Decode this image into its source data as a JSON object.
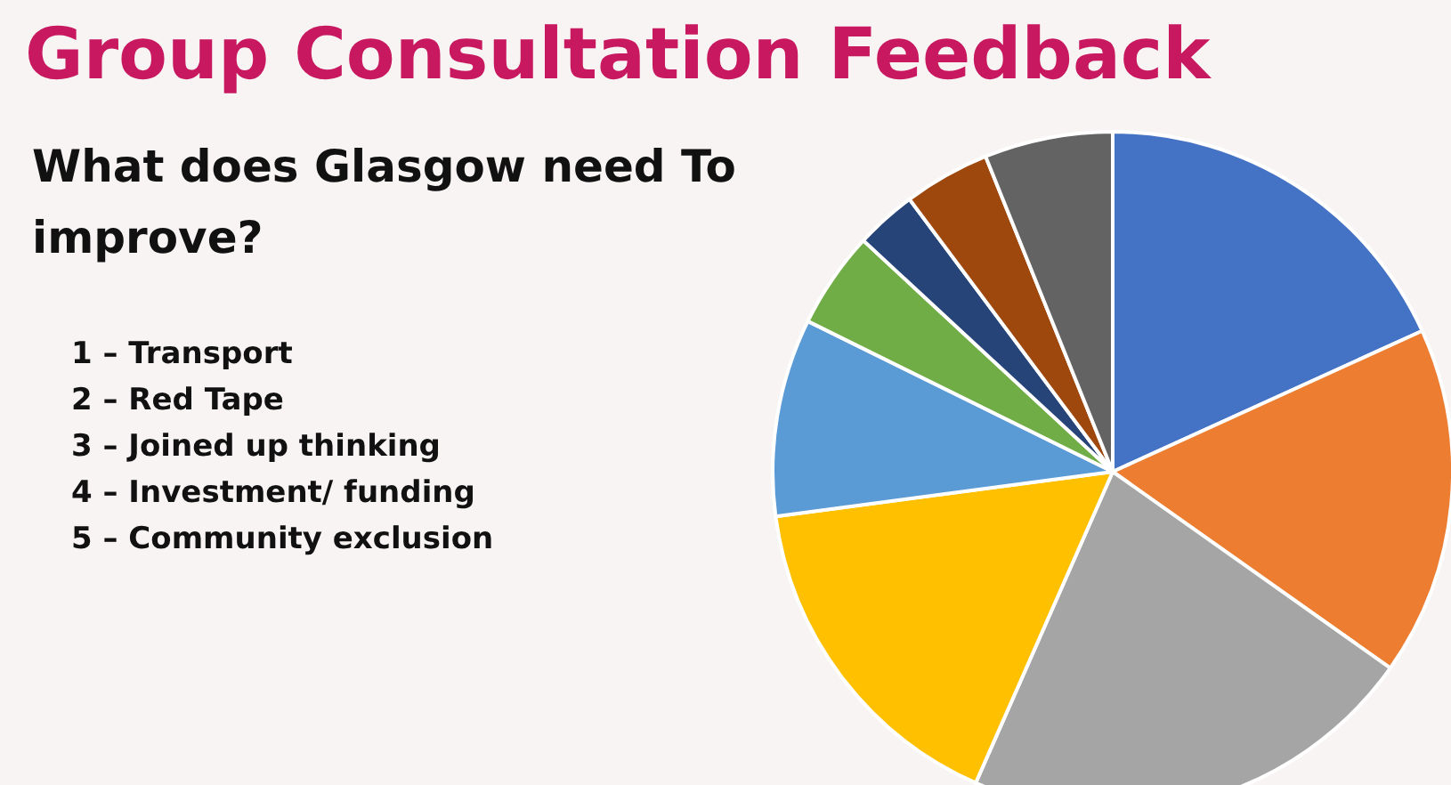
{
  "chart_data": {
    "type": "pie",
    "title": "Group Consultation Feedback",
    "subtitle": "What does Glasgow need To improve?",
    "categories": [
      null,
      null,
      null,
      null,
      null,
      null,
      null,
      null,
      null
    ],
    "values": [
      18.2,
      16.6,
      21.8,
      16.3,
      9.4,
      4.6,
      2.9,
      4.1,
      6.1
    ],
    "colors": [
      "#4472c4",
      "#ed7d31",
      "#a5a5a5",
      "#ffc000",
      "#5b9bd5",
      "#70ad47",
      "#264478",
      "#9e480e",
      "#636363"
    ],
    "annotations": [
      "1 – Transport",
      "2 – Red Tape",
      "3 – Joined up thinking",
      "4 – Investment/ funding",
      "5 – Community exclusion"
    ]
  }
}
